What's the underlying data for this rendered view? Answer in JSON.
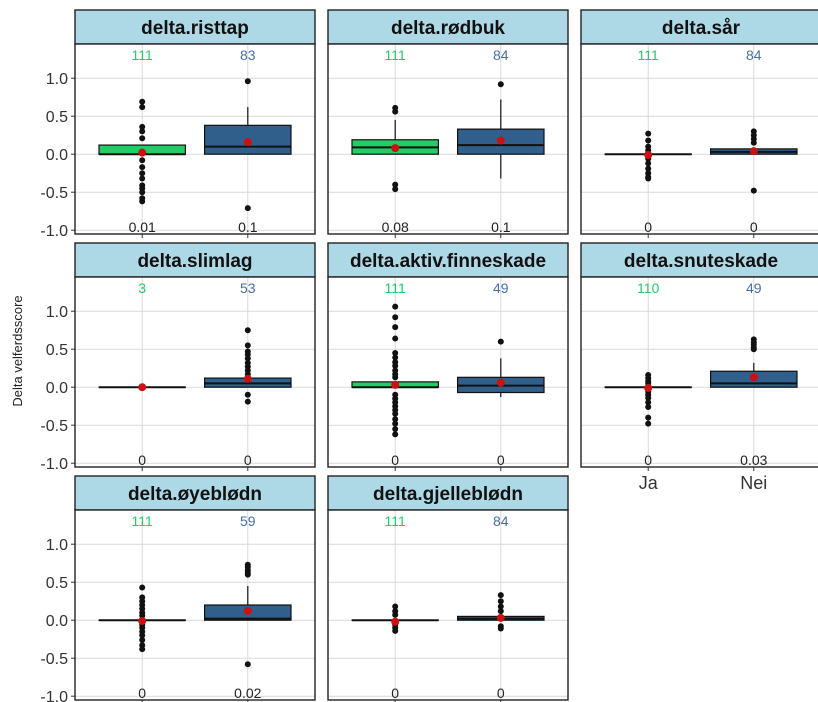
{
  "colors": {
    "ja": "#22cc66",
    "nei": "#2f5f8a",
    "mean": "#cc1111",
    "strip": "#add8e6",
    "grid": "#d9d9d9"
  },
  "chart_data": {
    "type": "box",
    "ylabel": "Delta velferdsscore",
    "y_ticks": [
      "1.0",
      "0.5",
      "0.0",
      "-0.5",
      "-1.0"
    ],
    "ylim": [
      -1.05,
      1.45
    ],
    "categories": [
      "Ja",
      "Nei"
    ],
    "panels": [
      {
        "name": "delta.risttap",
        "ja": {
          "n": "111",
          "p": "0.01",
          "q1": 0.0,
          "median": 0.0,
          "q3": 0.12,
          "wlo": 0.0,
          "whi": 0.12,
          "mean": 0.02,
          "outliers": [
            0.69,
            0.62,
            0.36,
            0.3,
            0.21,
            -0.08,
            -0.17,
            -0.25,
            -0.32,
            -0.41,
            -0.45,
            -0.5,
            -0.58,
            -0.62
          ]
        },
        "nei": {
          "n": "83",
          "p": "0.1",
          "q1": 0.0,
          "median": 0.1,
          "q3": 0.38,
          "wlo": 0.0,
          "whi": 0.62,
          "mean": 0.16,
          "outliers": [
            0.96,
            -0.71
          ]
        }
      },
      {
        "name": "delta.rødbuk",
        "ja": {
          "n": "111",
          "p": "0.08",
          "q1": 0.0,
          "median": 0.09,
          "q3": 0.19,
          "wlo": 0.0,
          "whi": 0.45,
          "mean": 0.08,
          "outliers": [
            0.61,
            0.56,
            -0.4,
            -0.46
          ]
        },
        "nei": {
          "n": "84",
          "p": "0.1",
          "q1": 0.0,
          "median": 0.12,
          "q3": 0.33,
          "wlo": -0.32,
          "whi": 0.72,
          "mean": 0.18,
          "outliers": [
            0.92
          ]
        }
      },
      {
        "name": "delta.sår",
        "ja": {
          "n": "111",
          "p": "0",
          "q1": 0.0,
          "median": 0.0,
          "q3": 0.0,
          "wlo": 0.0,
          "whi": 0.0,
          "mean": -0.01,
          "outliers": [
            0.27,
            0.18,
            0.1,
            0.05,
            -0.06,
            -0.12,
            -0.19,
            -0.25,
            -0.3,
            -0.32
          ]
        },
        "nei": {
          "n": "84",
          "p": "0",
          "q1": 0.0,
          "median": 0.03,
          "q3": 0.07,
          "wlo": 0.0,
          "whi": 0.07,
          "mean": 0.04,
          "outliers": [
            0.3,
            0.25,
            0.2,
            0.15,
            -0.48
          ]
        }
      },
      {
        "name": "delta.slimlag",
        "ja": {
          "n": "3",
          "p": "0",
          "q1": 0.0,
          "median": 0.0,
          "q3": 0.0,
          "wlo": 0.0,
          "whi": 0.0,
          "mean": 0.0,
          "outliers": []
        },
        "nei": {
          "n": "53",
          "p": "0",
          "q1": 0.0,
          "median": 0.05,
          "q3": 0.12,
          "wlo": 0.0,
          "whi": 0.12,
          "mean": 0.11,
          "outliers": [
            0.75,
            0.55,
            0.47,
            0.43,
            0.38,
            0.32,
            0.27,
            0.22,
            0.17,
            -0.1,
            -0.19
          ]
        }
      },
      {
        "name": "delta.aktiv.finneskade",
        "ja": {
          "n": "111",
          "p": "0",
          "q1": 0.0,
          "median": 0.0,
          "q3": 0.07,
          "wlo": 0.0,
          "whi": 0.07,
          "mean": 0.03,
          "outliers": [
            1.06,
            0.92,
            0.79,
            0.64,
            0.45,
            0.39,
            0.33,
            0.28,
            0.22,
            0.17,
            0.13,
            -0.1,
            -0.15,
            -0.2,
            -0.25,
            -0.3,
            -0.35,
            -0.42,
            -0.48,
            -0.55,
            -0.62
          ]
        },
        "nei": {
          "n": "49",
          "p": "0",
          "q1": -0.07,
          "median": 0.02,
          "q3": 0.13,
          "wlo": -0.13,
          "whi": 0.38,
          "mean": 0.06,
          "outliers": [
            0.6
          ]
        }
      },
      {
        "name": "delta.snuteskade",
        "ja": {
          "n": "110",
          "p": "0",
          "q1": 0.0,
          "median": 0.0,
          "q3": 0.0,
          "wlo": 0.0,
          "whi": 0.0,
          "mean": -0.01,
          "outliers": [
            0.16,
            0.12,
            0.08,
            0.05,
            -0.06,
            -0.1,
            -0.14,
            -0.2,
            -0.26,
            -0.4,
            -0.48
          ]
        },
        "nei": {
          "n": "49",
          "p": "0.03",
          "q1": 0.0,
          "median": 0.05,
          "q3": 0.21,
          "wlo": 0.0,
          "whi": 0.32,
          "mean": 0.13,
          "outliers": [
            0.63,
            0.59,
            0.56,
            0.52,
            0.5
          ]
        }
      },
      {
        "name": "delta.øyeblødn",
        "ja": {
          "n": "111",
          "p": "0",
          "q1": 0.0,
          "median": 0.0,
          "q3": 0.0,
          "wlo": 0.0,
          "whi": 0.0,
          "mean": -0.01,
          "outliers": [
            0.43,
            0.3,
            0.25,
            0.2,
            0.15,
            0.1,
            0.06,
            -0.06,
            -0.1,
            -0.15,
            -0.2,
            -0.26,
            -0.33,
            -0.38
          ]
        },
        "nei": {
          "n": "59",
          "p": "0.02",
          "q1": 0.0,
          "median": 0.02,
          "q3": 0.2,
          "wlo": 0.0,
          "whi": 0.45,
          "mean": 0.12,
          "outliers": [
            0.73,
            0.7,
            0.66,
            0.63,
            0.6,
            -0.58
          ]
        }
      },
      {
        "name": "delta.gjelleblødn",
        "ja": {
          "n": "111",
          "p": "0",
          "q1": 0.0,
          "median": 0.0,
          "q3": 0.0,
          "wlo": 0.0,
          "whi": 0.0,
          "mean": -0.02,
          "outliers": [
            0.18,
            0.12,
            0.07,
            -0.06,
            -0.1,
            -0.14
          ]
        },
        "nei": {
          "n": "84",
          "p": "0",
          "q1": 0.0,
          "median": 0.02,
          "q3": 0.05,
          "wlo": 0.0,
          "whi": 0.05,
          "mean": 0.03,
          "outliers": [
            0.33,
            0.25,
            0.18,
            0.12,
            -0.08,
            -0.11
          ]
        }
      }
    ]
  }
}
